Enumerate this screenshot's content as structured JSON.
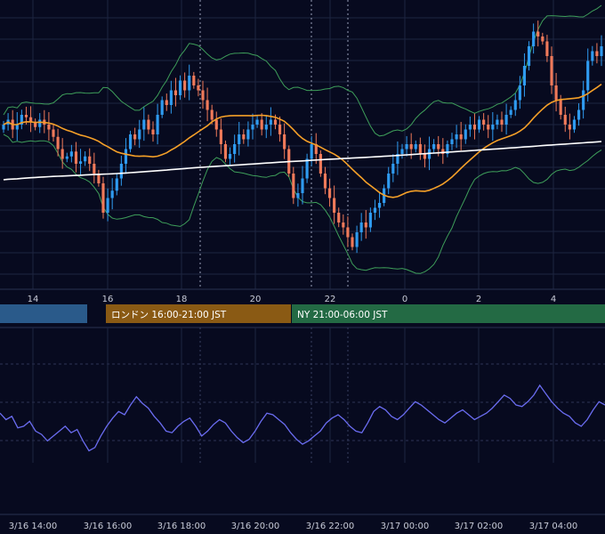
{
  "theme": {
    "background": "#070a1f",
    "grid": "#1e2540",
    "candle_up": "#2f9bf0",
    "candle_down": "#f07a5a",
    "ma_slow": "#ffffff",
    "ma_fast": "#f5a028",
    "bollinger": "#3e9e5a",
    "oscillator": "#6a6cf0"
  },
  "price_chart": {
    "type": "candlestick",
    "x_ticks": [
      "14",
      "16",
      "18",
      "20",
      "22",
      "0",
      "2",
      "4"
    ],
    "close": [
      0.6,
      0.62,
      0.58,
      0.6,
      0.64,
      0.63,
      0.61,
      0.59,
      0.62,
      0.6,
      0.58,
      0.55,
      0.5,
      0.46,
      0.47,
      0.49,
      0.44,
      0.45,
      0.47,
      0.44,
      0.4,
      0.36,
      0.24,
      0.3,
      0.33,
      0.38,
      0.44,
      0.5,
      0.56,
      0.54,
      0.58,
      0.62,
      0.58,
      0.56,
      0.64,
      0.7,
      0.68,
      0.74,
      0.72,
      0.78,
      0.74,
      0.8,
      0.76,
      0.74,
      0.7,
      0.66,
      0.62,
      0.58,
      0.52,
      0.46,
      0.48,
      0.52,
      0.56,
      0.54,
      0.58,
      0.6,
      0.62,
      0.58,
      0.6,
      0.62,
      0.6,
      0.56,
      0.5,
      0.4,
      0.3,
      0.32,
      0.38,
      0.46,
      0.52,
      0.48,
      0.4,
      0.34,
      0.3,
      0.24,
      0.2,
      0.18,
      0.14,
      0.1,
      0.16,
      0.2,
      0.18,
      0.24,
      0.26,
      0.28,
      0.34,
      0.4,
      0.44,
      0.48,
      0.5,
      0.52,
      0.5,
      0.52,
      0.48,
      0.46,
      0.5,
      0.52,
      0.5,
      0.48,
      0.52,
      0.54,
      0.56,
      0.54,
      0.58,
      0.6,
      0.58,
      0.62,
      0.6,
      0.58,
      0.6,
      0.62,
      0.6,
      0.64,
      0.66,
      0.7,
      0.76,
      0.84,
      0.92,
      0.98,
      0.96,
      0.94,
      0.88,
      0.76,
      0.7,
      0.64,
      0.6,
      0.58,
      0.62,
      0.66,
      0.74,
      0.86,
      0.9,
      0.88,
      0.92
    ]
  },
  "sessions": [
    {
      "label": "",
      "color": "#2a5a8a"
    },
    {
      "label": "ロンドン 16:00-21:00 JST",
      "color": "#8a5a14"
    },
    {
      "label": "NY 21:00-06:00 JST",
      "color": "#236a44"
    }
  ],
  "oscillator": {
    "type": "line",
    "values": [
      0.52,
      0.44,
      0.48,
      0.34,
      0.36,
      0.42,
      0.3,
      0.26,
      0.18,
      0.24,
      0.3,
      0.36,
      0.28,
      0.32,
      0.18,
      0.06,
      0.1,
      0.24,
      0.36,
      0.46,
      0.54,
      0.5,
      0.62,
      0.72,
      0.64,
      0.58,
      0.48,
      0.4,
      0.3,
      0.28,
      0.36,
      0.42,
      0.46,
      0.36,
      0.24,
      0.3,
      0.38,
      0.44,
      0.4,
      0.3,
      0.22,
      0.16,
      0.2,
      0.3,
      0.42,
      0.52,
      0.5,
      0.44,
      0.38,
      0.28,
      0.2,
      0.14,
      0.18,
      0.24,
      0.3,
      0.4,
      0.46,
      0.5,
      0.44,
      0.36,
      0.3,
      0.28,
      0.4,
      0.54,
      0.6,
      0.56,
      0.48,
      0.44,
      0.5,
      0.58,
      0.66,
      0.62,
      0.56,
      0.5,
      0.44,
      0.4,
      0.46,
      0.52,
      0.56,
      0.5,
      0.44,
      0.48,
      0.52,
      0.58,
      0.66,
      0.74,
      0.7,
      0.62,
      0.6,
      0.66,
      0.74,
      0.86,
      0.76,
      0.66,
      0.58,
      0.52,
      0.48,
      0.4,
      0.36,
      0.44,
      0.56,
      0.66,
      0.62
    ]
  },
  "time_axis": {
    "labels": [
      "3/16 14:00",
      "3/16 16:00",
      "3/16 18:00",
      "3/16 20:00",
      "3/16 22:00",
      "3/17 00:00",
      "3/17 02:00",
      "3/17 04:00"
    ]
  }
}
